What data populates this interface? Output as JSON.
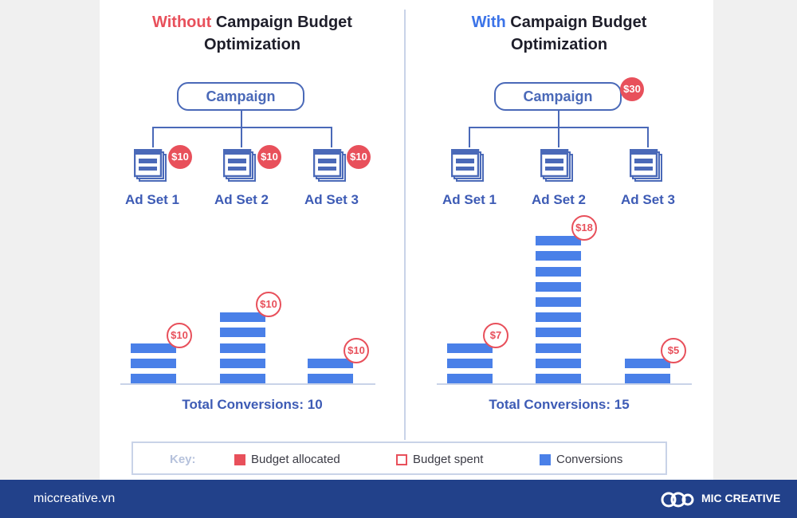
{
  "left": {
    "title_highlight": "Without",
    "title_line1_rest": " Campaign Budget",
    "title_line2": "Optimization",
    "campaign_label": "Campaign",
    "adsets": [
      {
        "label": "Ad Set 1",
        "budget": "$10"
      },
      {
        "label": "Ad Set 2",
        "budget": "$10"
      },
      {
        "label": "Ad Set 3",
        "budget": "$10"
      }
    ],
    "bars": [
      {
        "conversions": 3,
        "spent": "$10"
      },
      {
        "conversions": 5,
        "spent": "$10"
      },
      {
        "conversions": 2,
        "spent": "$10"
      }
    ],
    "total": "Total Conversions: 10"
  },
  "right": {
    "title_highlight": "With",
    "title_line1_rest": " Campaign Budget",
    "title_line2": "Optimization",
    "campaign_label": "Campaign",
    "campaign_budget": "$30",
    "adsets": [
      {
        "label": "Ad Set 1"
      },
      {
        "label": "Ad Set 2"
      },
      {
        "label": "Ad Set 3"
      }
    ],
    "bars": [
      {
        "conversions": 3,
        "spent": "$7"
      },
      {
        "conversions": 10,
        "spent": "$18"
      },
      {
        "conversions": 2,
        "spent": "$5"
      }
    ],
    "total": "Total Conversions: 15"
  },
  "key": {
    "label": "Key:",
    "items": [
      "Budget allocated",
      "Budget spent",
      "Conversions"
    ]
  },
  "footer": {
    "url": "miccreative.vn",
    "brand": "MIC CREATIVE"
  },
  "colors": {
    "budget_allocated": "#e8505b",
    "conversions": "#4a80e8",
    "line": "#4a69b8",
    "footer": "#22418a"
  },
  "icons": [
    "ad-set-icon",
    "mic-creative-logo-icon"
  ]
}
